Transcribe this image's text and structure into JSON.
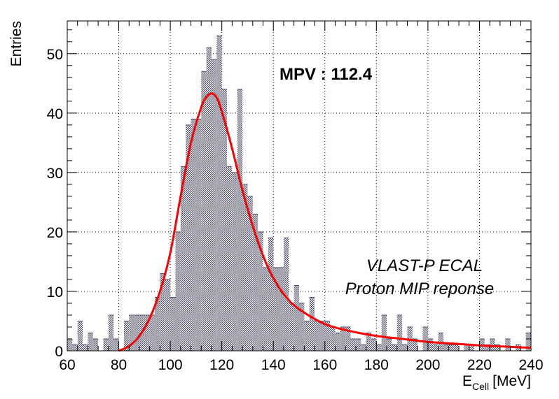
{
  "chart_data": {
    "type": "bar",
    "style": "histogram",
    "xlabel": "E",
    "xlabel_subscript": "Cell",
    "xlabel_unit": "[MeV]",
    "ylabel": "Entries",
    "xlim": [
      60,
      240
    ],
    "ylim": [
      0,
      55.5
    ],
    "grid": true,
    "bin_width": 2,
    "x_ticks": [
      60,
      80,
      100,
      120,
      140,
      160,
      180,
      200,
      220,
      240
    ],
    "y_ticks": [
      0,
      10,
      20,
      30,
      40,
      50
    ],
    "bins": [
      [
        60,
        2
      ],
      [
        62,
        1
      ],
      [
        64,
        5
      ],
      [
        66,
        1
      ],
      [
        68,
        3
      ],
      [
        70,
        2
      ],
      [
        72,
        0
      ],
      [
        74,
        2
      ],
      [
        76,
        6
      ],
      [
        78,
        2
      ],
      [
        80,
        0
      ],
      [
        82,
        5
      ],
      [
        84,
        6
      ],
      [
        86,
        6
      ],
      [
        88,
        6
      ],
      [
        90,
        6
      ],
      [
        92,
        6
      ],
      [
        94,
        9
      ],
      [
        96,
        13
      ],
      [
        98,
        12
      ],
      [
        100,
        9
      ],
      [
        102,
        20
      ],
      [
        104,
        31
      ],
      [
        106,
        38
      ],
      [
        108,
        39
      ],
      [
        110,
        39
      ],
      [
        112,
        47
      ],
      [
        114,
        51
      ],
      [
        116,
        49
      ],
      [
        118,
        53
      ],
      [
        120,
        44
      ],
      [
        122,
        31
      ],
      [
        124,
        30
      ],
      [
        126,
        44
      ],
      [
        128,
        28
      ],
      [
        130,
        26
      ],
      [
        132,
        23
      ],
      [
        134,
        20
      ],
      [
        136,
        14
      ],
      [
        138,
        19
      ],
      [
        140,
        14
      ],
      [
        142,
        14
      ],
      [
        144,
        19
      ],
      [
        146,
        8
      ],
      [
        148,
        11
      ],
      [
        150,
        8
      ],
      [
        152,
        5
      ],
      [
        154,
        9
      ],
      [
        156,
        5
      ],
      [
        158,
        5
      ],
      [
        160,
        5
      ],
      [
        162,
        4
      ],
      [
        164,
        3
      ],
      [
        166,
        4
      ],
      [
        168,
        4
      ],
      [
        170,
        2
      ],
      [
        172,
        2
      ],
      [
        174,
        1
      ],
      [
        176,
        3
      ],
      [
        178,
        2
      ],
      [
        180,
        1
      ],
      [
        182,
        6
      ],
      [
        184,
        2
      ],
      [
        186,
        1
      ],
      [
        188,
        6
      ],
      [
        190,
        1
      ],
      [
        192,
        4
      ],
      [
        194,
        2
      ],
      [
        196,
        0
      ],
      [
        198,
        4
      ],
      [
        200,
        2
      ],
      [
        202,
        1
      ],
      [
        204,
        3
      ],
      [
        206,
        1
      ],
      [
        208,
        1
      ],
      [
        210,
        1
      ],
      [
        212,
        0
      ],
      [
        214,
        1
      ],
      [
        216,
        1
      ],
      [
        218,
        0
      ],
      [
        220,
        2
      ],
      [
        222,
        1
      ],
      [
        224,
        2
      ],
      [
        226,
        1
      ],
      [
        228,
        0
      ],
      [
        230,
        2
      ],
      [
        232,
        0
      ],
      [
        234,
        1
      ],
      [
        236,
        0
      ],
      [
        238,
        3
      ]
    ],
    "fit_series": {
      "color": "#ff0000",
      "x": [
        80,
        84,
        88,
        92,
        96,
        100,
        104,
        108,
        112,
        114,
        116,
        118,
        120,
        124,
        128,
        132,
        136,
        140,
        145,
        150,
        160,
        170,
        180,
        190,
        200,
        210,
        220,
        230,
        240
      ],
      "y": [
        0,
        0.8,
        2.5,
        5.5,
        10,
        16.5,
        26,
        35,
        41,
        42.7,
        43.3,
        42.6,
        40.2,
        34,
        27,
        21,
        16,
        12.2,
        9,
        7,
        4.5,
        3.3,
        2.5,
        2.0,
        1.5,
        1.2,
        0.9,
        0.7,
        0.5
      ]
    },
    "hist_color": "#4d4d6a",
    "mpv_label": "MPV : 112.4",
    "annotation_lines": [
      "VLAST-P ECAL",
      "Proton MIP reponse"
    ]
  }
}
